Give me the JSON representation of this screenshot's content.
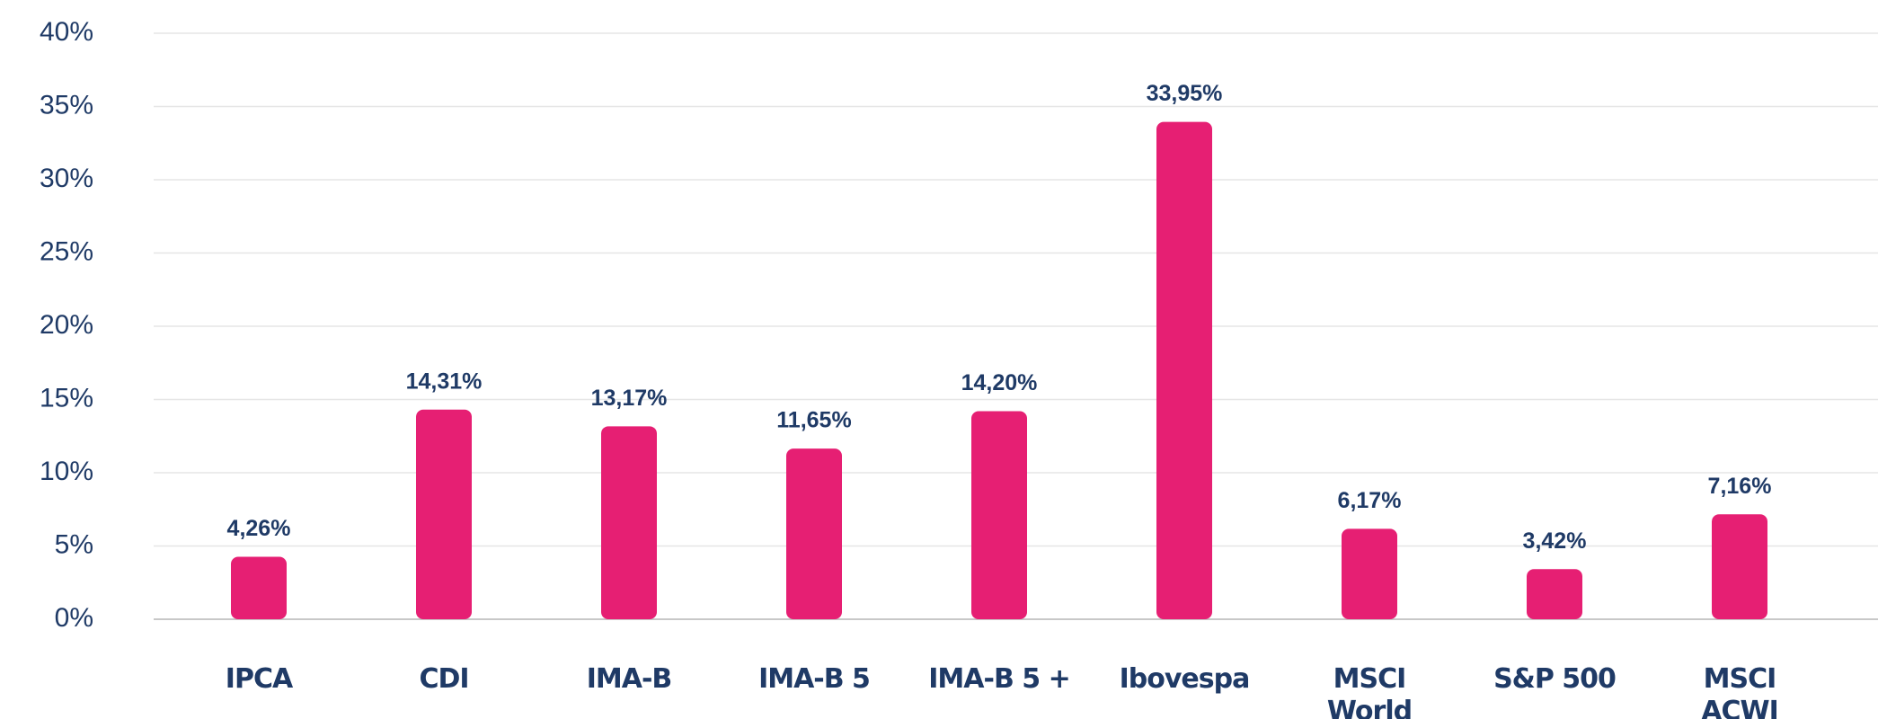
{
  "chart_data": {
    "type": "bar",
    "categories": [
      "IPCA",
      "CDI",
      "IMA-B",
      "IMA-B 5",
      "IMA-B 5 +",
      "Ibovespa",
      "MSCI World",
      "S&P 500",
      "MSCI ACWI"
    ],
    "values": [
      4.26,
      14.31,
      13.17,
      11.65,
      14.2,
      33.95,
      6.17,
      3.42,
      7.16
    ],
    "value_labels": [
      "4,26%",
      "14,31%",
      "13,17%",
      "11,65%",
      "14,20%",
      "33,95%",
      "6,17%",
      "3,42%",
      "7,16%"
    ],
    "color": "#e61f73",
    "ylim": [
      0,
      40
    ],
    "yticks": [
      {
        "value": 0,
        "label": "0%"
      },
      {
        "value": 5,
        "label": "5%"
      },
      {
        "value": 10,
        "label": "10%"
      },
      {
        "value": 15,
        "label": "15%"
      },
      {
        "value": 20,
        "label": "20%"
      },
      {
        "value": 25,
        "label": "25%"
      },
      {
        "value": 30,
        "label": "30%"
      },
      {
        "value": 35,
        "label": "35%"
      },
      {
        "value": 40,
        "label": "40%"
      }
    ],
    "grid": true
  }
}
